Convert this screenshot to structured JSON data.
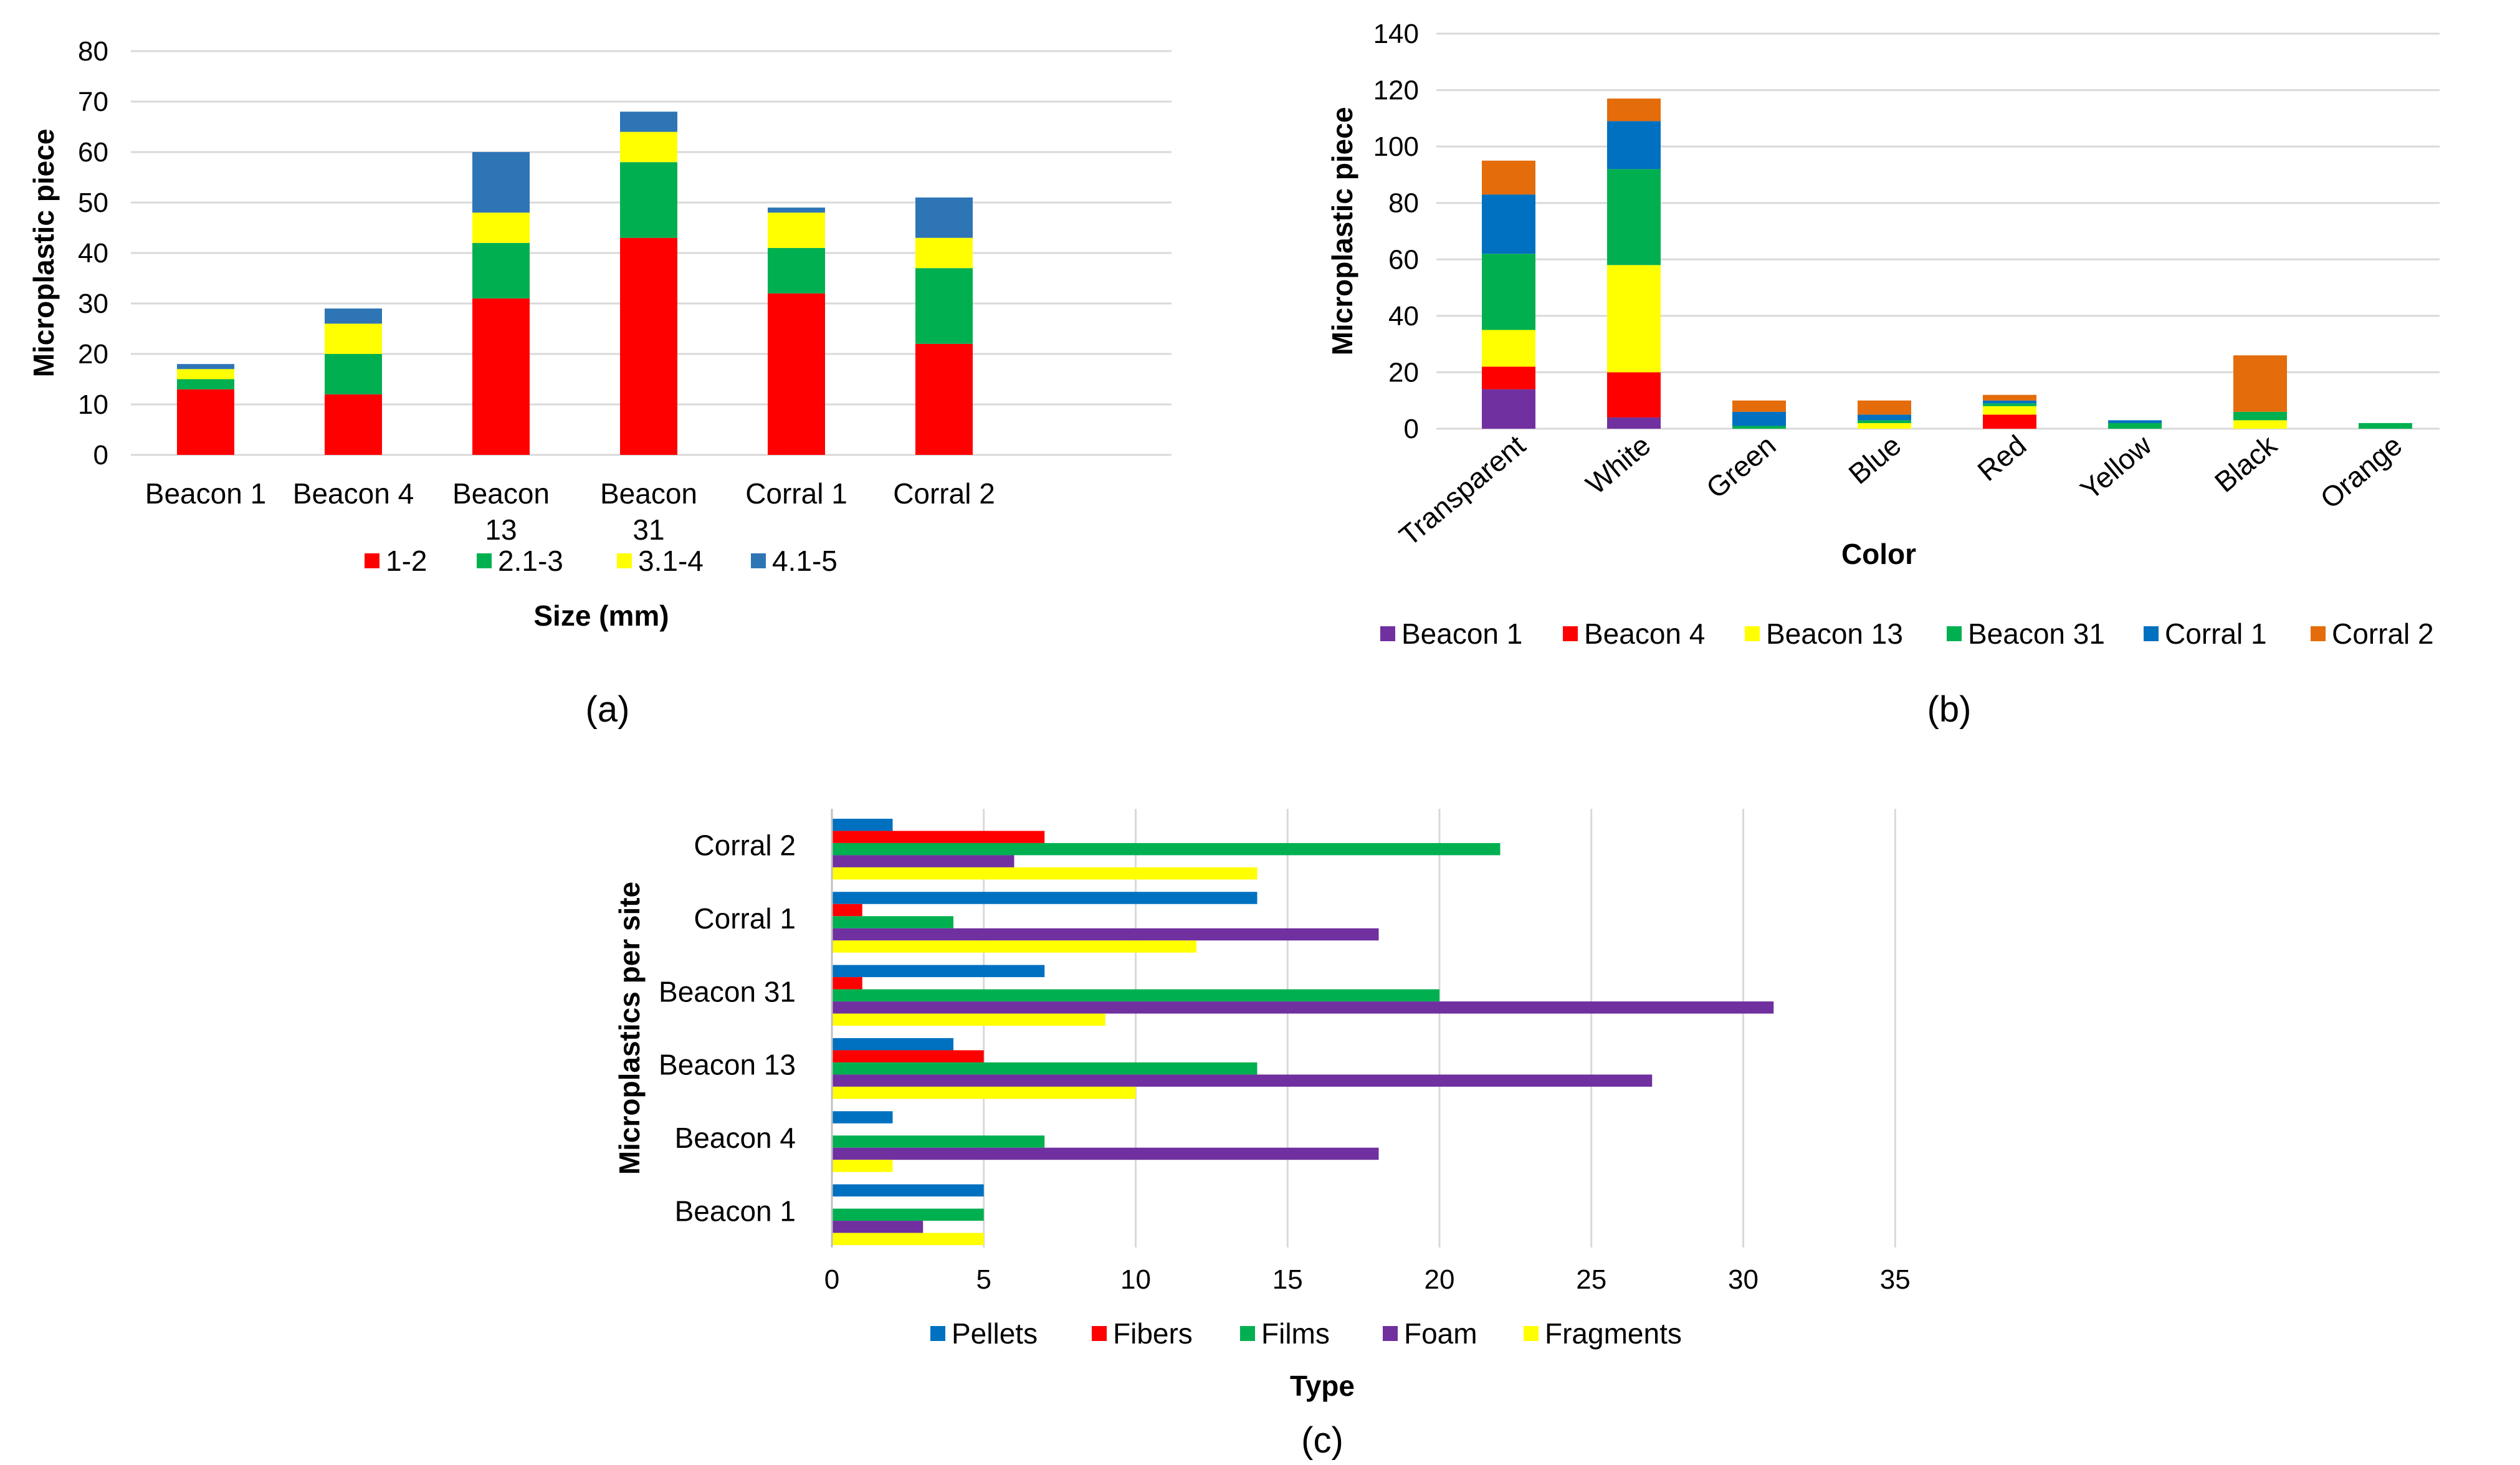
{
  "colors": {
    "red": "#ff0000",
    "green": "#00b050",
    "yellow": "#ffff00",
    "blue": "#2e75b6",
    "purple": "#7030a0",
    "corral_blue": "#0070c0",
    "orange": "#e46c0a",
    "gridline": "#d9d9d9"
  },
  "chart_data": [
    {
      "id": "a",
      "type": "bar",
      "stacked": true,
      "panel_label": "(a)",
      "xlabel": "Size (mm)",
      "ylabel": "Microplastic piece",
      "ylim": [
        0,
        80
      ],
      "yticks": [
        0,
        10,
        20,
        30,
        40,
        50,
        60,
        70,
        80
      ],
      "categories": [
        "Beacon 1",
        "Beacon 4",
        "Beacon 13",
        "Beacon 31",
        "Corral 1",
        "Corral 2"
      ],
      "category_lines": [
        [
          "Beacon 1"
        ],
        [
          "Beacon 4"
        ],
        [
          "Beacon",
          "13"
        ],
        [
          "Beacon",
          "31"
        ],
        [
          "Corral 1"
        ],
        [
          "Corral 2"
        ]
      ],
      "legend_position": "bottom",
      "series": [
        {
          "name": "1-2",
          "color": "#ff0000",
          "values": [
            13,
            12,
            31,
            43,
            32,
            22
          ]
        },
        {
          "name": "2.1-3",
          "color": "#00b050",
          "values": [
            2,
            8,
            11,
            15,
            9,
            15
          ]
        },
        {
          "name": "3.1-4",
          "color": "#ffff00",
          "values": [
            2,
            6,
            6,
            6,
            7,
            6
          ]
        },
        {
          "name": "4.1-5",
          "color": "#2e75b6",
          "values": [
            1,
            3,
            12,
            4,
            1,
            8
          ]
        }
      ]
    },
    {
      "id": "b",
      "type": "bar",
      "stacked": true,
      "panel_label": "(b)",
      "xlabel": "Color",
      "ylabel": "Microplastic piece",
      "ylim": [
        0,
        140
      ],
      "yticks": [
        0,
        20,
        40,
        60,
        80,
        100,
        120,
        140
      ],
      "categories": [
        "Transparent",
        "White",
        "Green",
        "Blue",
        "Red",
        "Yellow",
        "Black",
        "Orange"
      ],
      "legend_position": "bottom",
      "series": [
        {
          "name": "Beacon 1",
          "color": "#7030a0",
          "values": [
            14,
            4,
            0,
            0,
            0,
            0,
            0,
            0
          ]
        },
        {
          "name": "Beacon 4",
          "color": "#ff0000",
          "values": [
            8,
            16,
            0,
            0,
            5,
            0,
            0,
            0
          ]
        },
        {
          "name": "Beacon 13",
          "color": "#ffff00",
          "values": [
            13,
            38,
            0,
            2,
            3,
            0,
            3,
            0
          ]
        },
        {
          "name": "Beacon 31",
          "color": "#00b050",
          "values": [
            27,
            34,
            1,
            1,
            1,
            2,
            3,
            2
          ]
        },
        {
          "name": "Corral 1",
          "color": "#0070c0",
          "values": [
            21,
            17,
            5,
            2,
            1,
            1,
            0,
            0
          ]
        },
        {
          "name": "Corral 2",
          "color": "#e46c0a",
          "values": [
            12,
            8,
            4,
            5,
            2,
            0,
            20,
            0
          ]
        }
      ]
    },
    {
      "id": "c",
      "type": "bar",
      "orientation": "horizontal",
      "panel_label": "(c)",
      "xlabel": "Type",
      "ylabel": "Microplastics per site",
      "xlim": [
        0,
        35
      ],
      "xticks": [
        0,
        5,
        10,
        15,
        20,
        25,
        30,
        35
      ],
      "categories": [
        "Beacon 1",
        "Beacon 4",
        "Beacon 13",
        "Beacon 31",
        "Corral 1",
        "Corral 2"
      ],
      "legend_position": "bottom",
      "series": [
        {
          "name": "Pellets",
          "color": "#0070c0",
          "values": [
            5,
            2,
            4,
            7,
            14,
            2
          ]
        },
        {
          "name": "Fibers",
          "color": "#ff0000",
          "values": [
            0,
            0,
            5,
            1,
            1,
            7
          ]
        },
        {
          "name": "Films",
          "color": "#00b050",
          "values": [
            5,
            7,
            14,
            20,
            4,
            22
          ]
        },
        {
          "name": "Foam",
          "color": "#7030a0",
          "values": [
            3,
            18,
            27,
            31,
            18,
            6
          ]
        },
        {
          "name": "Fragments",
          "color": "#ffff00",
          "values": [
            5,
            2,
            10,
            9,
            12,
            14
          ]
        }
      ]
    }
  ]
}
